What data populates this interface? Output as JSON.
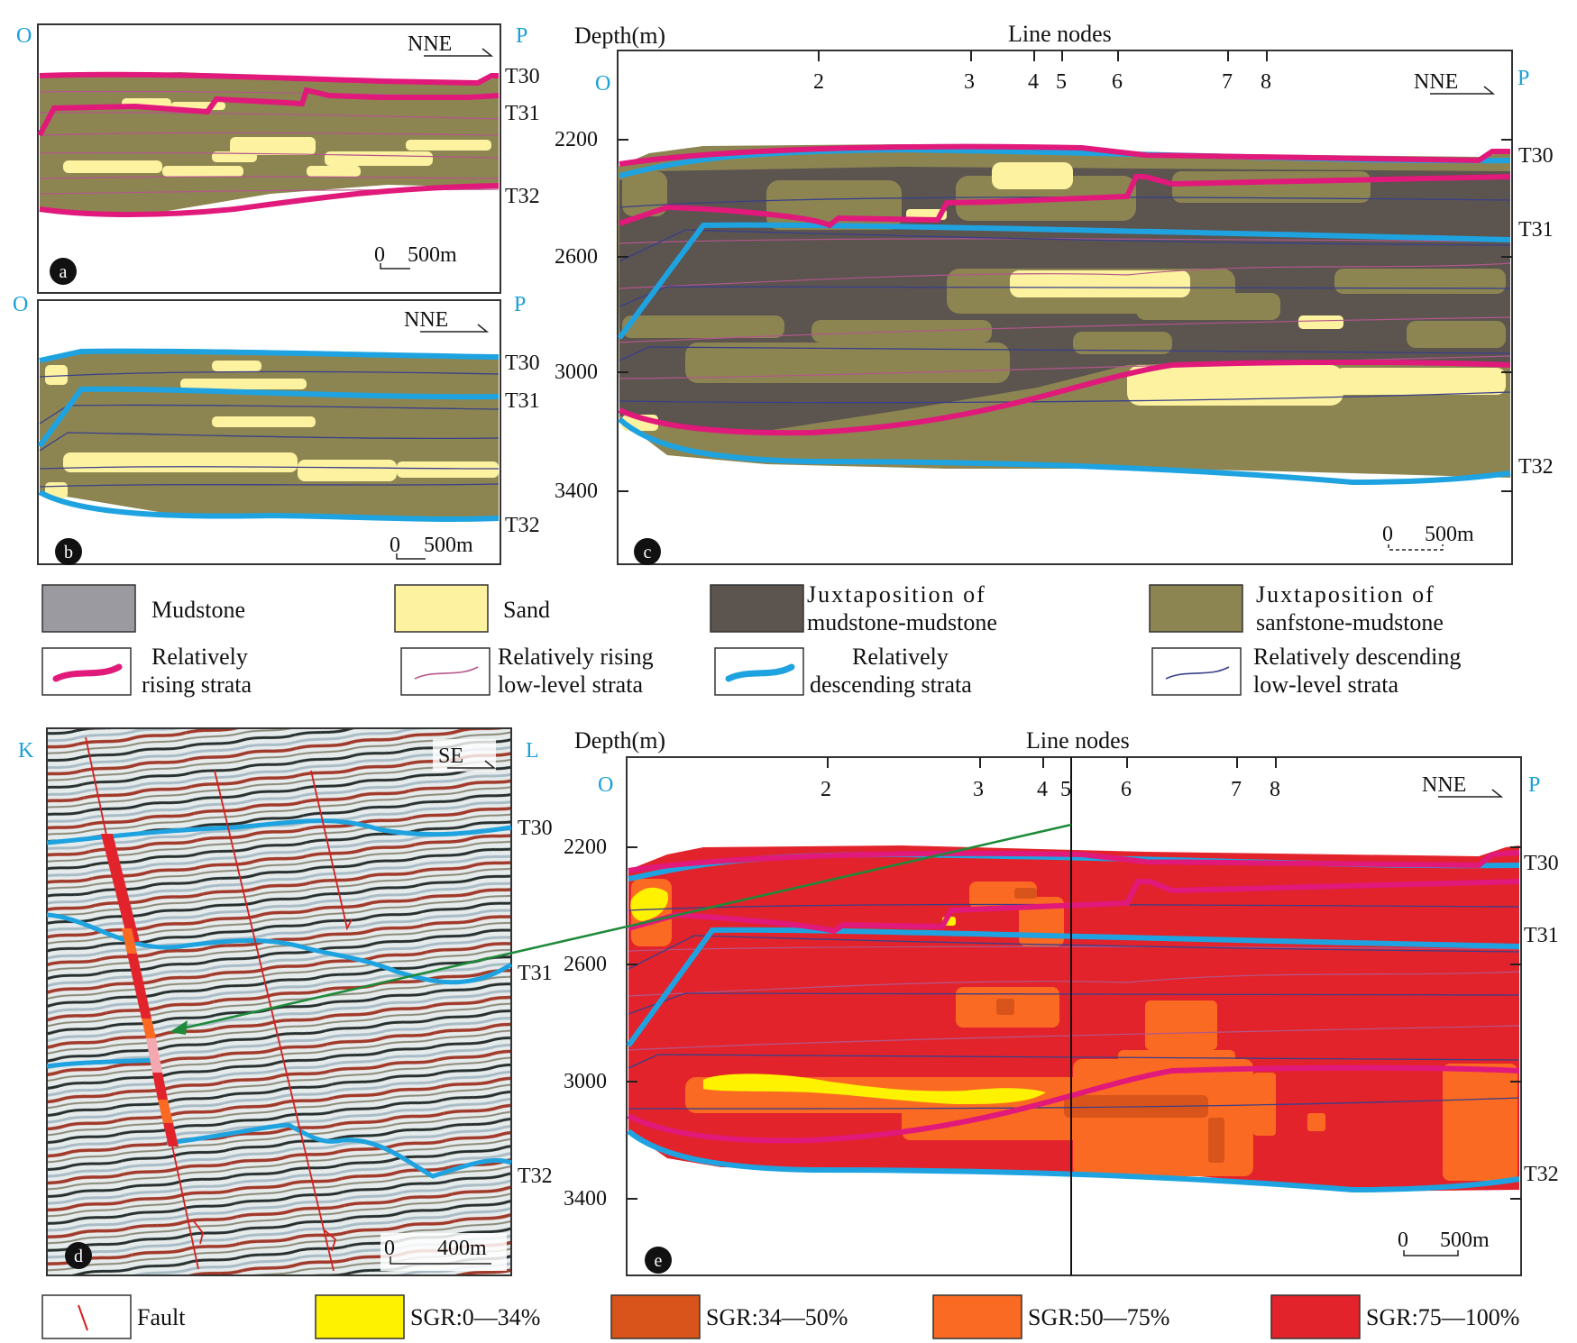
{
  "colors": {
    "mudstone": "#9b9aa0",
    "sand": "#fdf2a0",
    "mud_mud": "#5b544f",
    "sand_mud": "#8c8552",
    "rising": "#e0197b",
    "rising_low": "#b3568c",
    "descending": "#1ea3e0",
    "descending_low": "#3a3f8a",
    "sgr1": "#fff200",
    "sgr2": "#d9541a",
    "sgr3": "#fb6a22",
    "sgr4": "#e2232b",
    "fault": "#d42020",
    "endpoint": "#1aa0d8",
    "arrow": "#1e8a3a"
  },
  "panels": {
    "a": {
      "label": "a",
      "left": "O",
      "right": "P",
      "direction": "NNE",
      "scale": "500m",
      "scale_zero": "0",
      "horizons": [
        "T30",
        "T31",
        "T32"
      ]
    },
    "b": {
      "label": "b",
      "left": "O",
      "right": "P",
      "direction": "NNE",
      "scale": "500m",
      "scale_zero": "0",
      "horizons": [
        "T30",
        "T31",
        "T32"
      ]
    },
    "c": {
      "label": "c",
      "left": "O",
      "right": "P",
      "direction": "NNE",
      "scale": "500m",
      "scale_zero": "0",
      "horizons": [
        "T30",
        "T31",
        "T32"
      ],
      "depth_title": "Depth(m)",
      "nodes_title": "Line nodes",
      "depth_ticks": [
        "2200",
        "2600",
        "3000",
        "3400"
      ],
      "nodes": [
        "2",
        "3",
        "4",
        "5",
        "6",
        "7",
        "8"
      ]
    },
    "d": {
      "label": "d",
      "left": "K",
      "right": "L",
      "direction": "SE",
      "scale": "400m",
      "scale_zero": "0",
      "horizons": [
        "T30",
        "T31",
        "T32"
      ]
    },
    "e": {
      "label": "e",
      "left": "O",
      "right": "P",
      "direction": "NNE",
      "scale": "500m",
      "scale_zero": "0",
      "horizons": [
        "T30",
        "T31",
        "T32"
      ],
      "depth_title": "Depth(m)",
      "nodes_title": "Line nodes",
      "depth_ticks": [
        "2200",
        "2600",
        "3000",
        "3400"
      ],
      "nodes": [
        "2",
        "3",
        "4",
        "5",
        "6",
        "7",
        "8"
      ]
    }
  },
  "legend1": {
    "mudstone": "Mudstone",
    "sand": "Sand",
    "mud_mud_1": "Juxtaposition of",
    "mud_mud_2": "mudstone-mudstone",
    "sand_mud_1": "Juxtaposition of",
    "sand_mud_2": "sanfstone-mudstone",
    "rising_1": "Relatively",
    "rising_2": "rising strata",
    "rising_low_1": "Relatively rising",
    "rising_low_2": "low-level strata",
    "desc_1": "Relatively",
    "desc_2": "descending strata",
    "desc_low_1": "Relatively descending",
    "desc_low_2": "low-level strata"
  },
  "legend2": {
    "fault": "Fault",
    "sgr1": "SGR:0—34%",
    "sgr2": "SGR:34—50%",
    "sgr3": "SGR:50—75%",
    "sgr4": "SGR:75—100%"
  }
}
